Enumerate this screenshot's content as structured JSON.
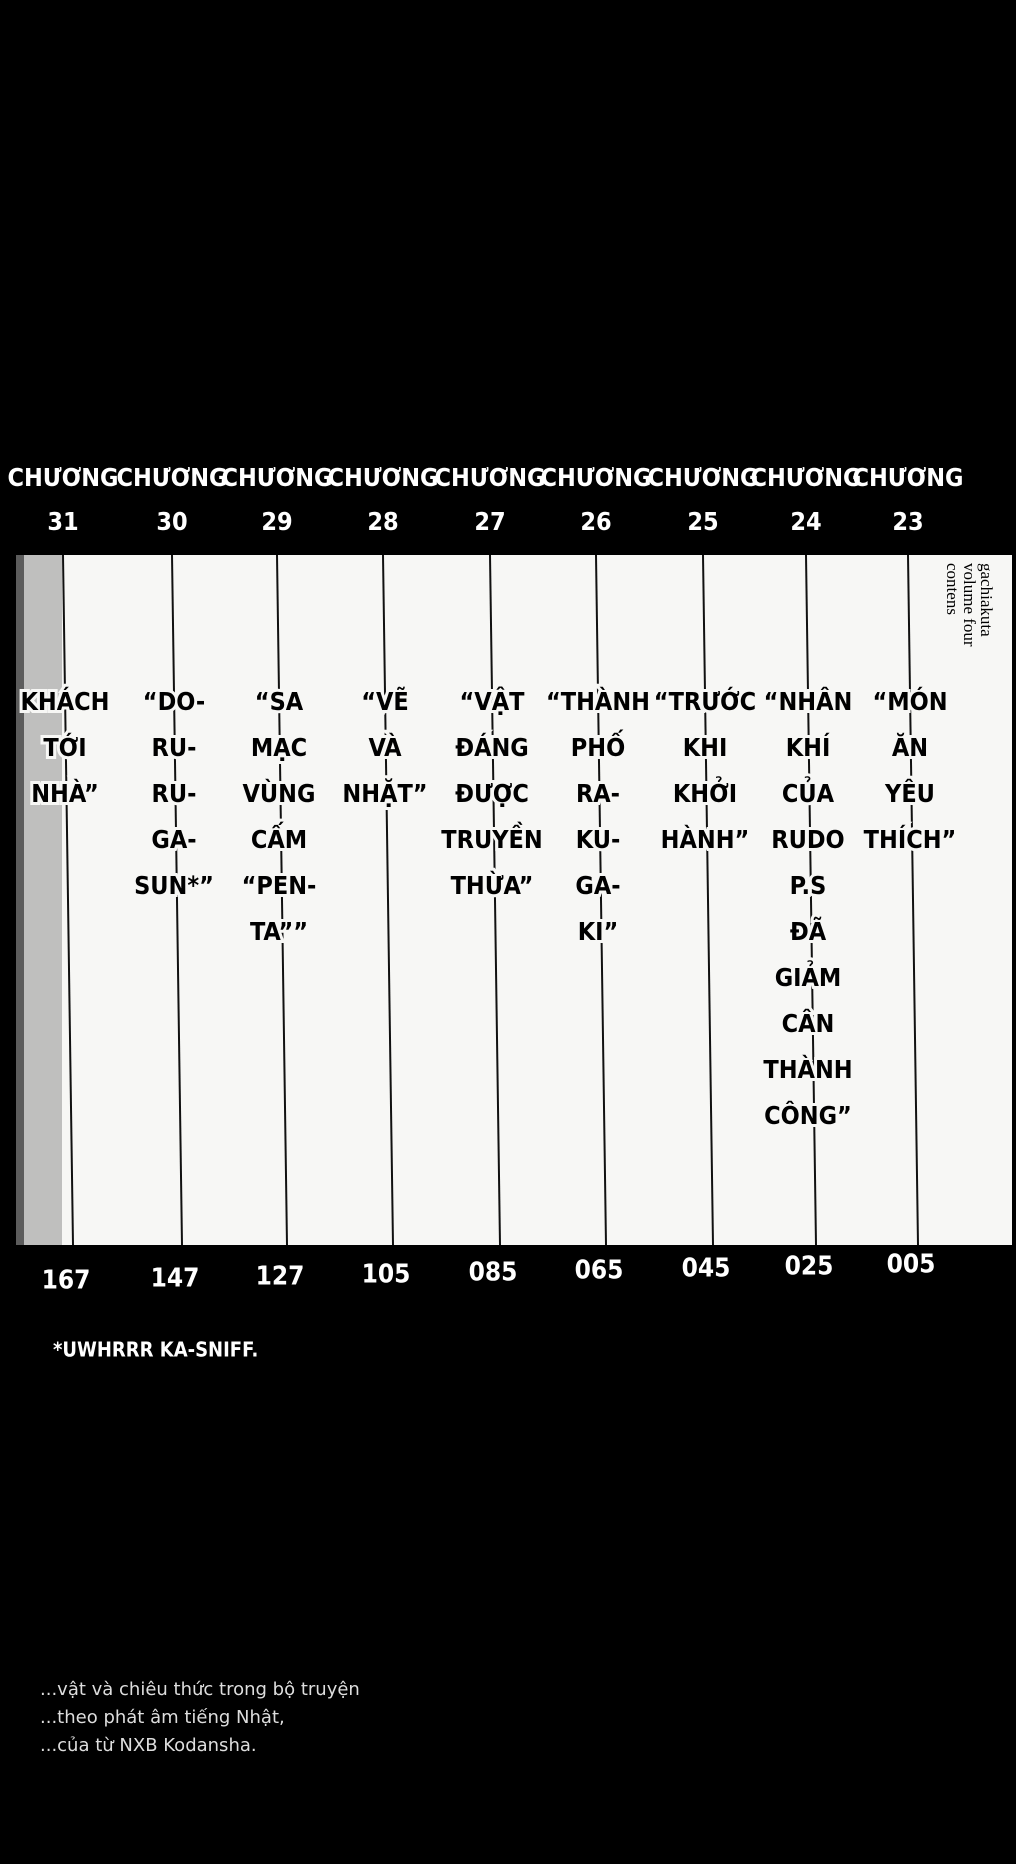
{
  "header": {
    "chapter_word": "CHƯƠNG"
  },
  "chapters": [
    {
      "number": 31,
      "title_lines": [
        "KHÁCH",
        "TỚI",
        "NHÀ”"
      ],
      "page": "167"
    },
    {
      "number": 30,
      "title_lines": [
        "“DO-",
        "RU-",
        "RU-",
        "GA-",
        "SUN*”"
      ],
      "page": "147"
    },
    {
      "number": 29,
      "title_lines": [
        "“SA",
        "MẠC",
        "VÙNG",
        "CẤM",
        "“PEN-",
        "TA””"
      ],
      "page": "127"
    },
    {
      "number": 28,
      "title_lines": [
        "“VẼ",
        "VÀ",
        "NHẶT”"
      ],
      "page": "105"
    },
    {
      "number": 27,
      "title_lines": [
        "“VẬT",
        "ĐÁNG",
        "ĐƯỢC",
        "TRUYỀN",
        "THỪA”"
      ],
      "page": "085"
    },
    {
      "number": 26,
      "title_lines": [
        "“THÀNH",
        "PHỐ",
        "RA-",
        "KU-",
        "GA-",
        "KI”"
      ],
      "page": "065"
    },
    {
      "number": 25,
      "title_lines": [
        "“TRƯỚC",
        "KHI",
        "KHỞI",
        "HÀNH”"
      ],
      "page": "045"
    },
    {
      "number": 24,
      "title_lines": [
        "“NHÂN",
        "KHÍ",
        "CỦA",
        "RUDO",
        "P.S",
        "ĐÃ",
        "GIẢM",
        "CÂN",
        "THÀNH",
        "CÔNG”"
      ],
      "page": "025"
    },
    {
      "number": 23,
      "title_lines": [
        "“MÓN",
        "ĂN",
        "YÊU",
        "THÍCH”"
      ],
      "page": "005"
    }
  ],
  "side_label": [
    "gachiakuta",
    "volume four",
    "contens"
  ],
  "footnote": "*UWHRRR KA-SNIFF.",
  "credits": [
    "...vật và chiêu thức trong bộ truyện",
    "...theo phát âm tiếng Nhật,",
    "...của từ NXB Kodansha."
  ]
}
